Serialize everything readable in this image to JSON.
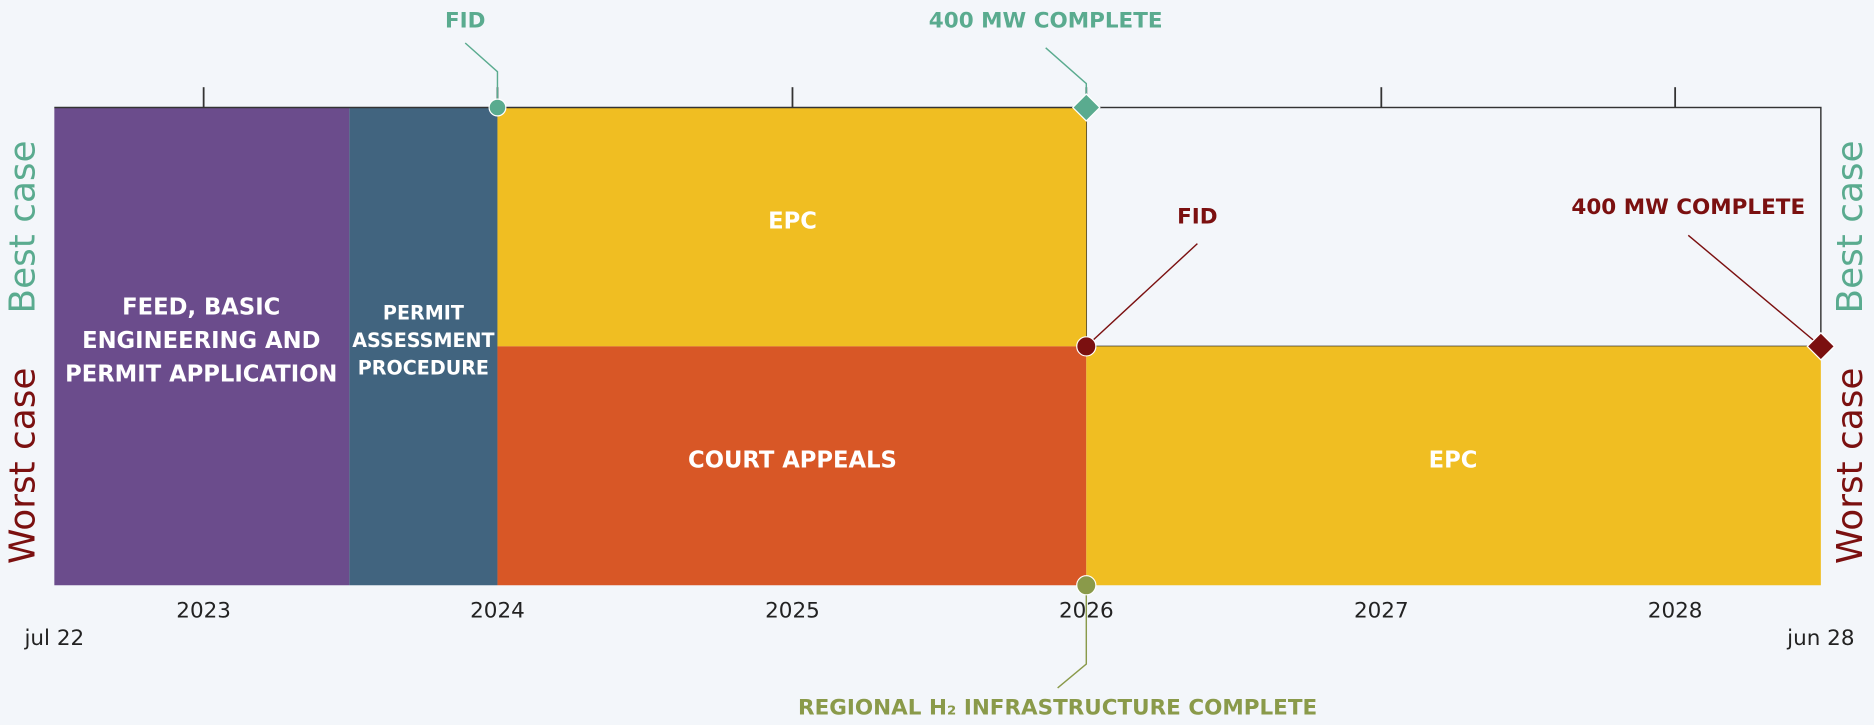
{
  "timeline": {
    "scenarios": {
      "best": "Best case",
      "worst": "Worst case"
    },
    "axis": {
      "start": "jul 22",
      "end": "jun 28",
      "years": [
        "2023",
        "2024",
        "2025",
        "2026",
        "2027",
        "2028"
      ]
    },
    "phases": {
      "feed": [
        "FEED, BASIC",
        "ENGINEERING AND",
        "PERMIT APPLICATION"
      ],
      "permit": [
        "PERMIT",
        "ASSESSMENT",
        "PROCEDURE"
      ],
      "best_epc": "EPC",
      "court": "COURT APPEALS",
      "worst_epc": "EPC"
    },
    "milestones": {
      "best_fid": "FID",
      "best_complete": "400 MW COMPLETE",
      "worst_fid": "FID",
      "worst_complete": "400 MW COMPLETE",
      "infrastructure": "REGIONAL H₂ INFRASTRUCTURE COMPLETE"
    }
  }
}
